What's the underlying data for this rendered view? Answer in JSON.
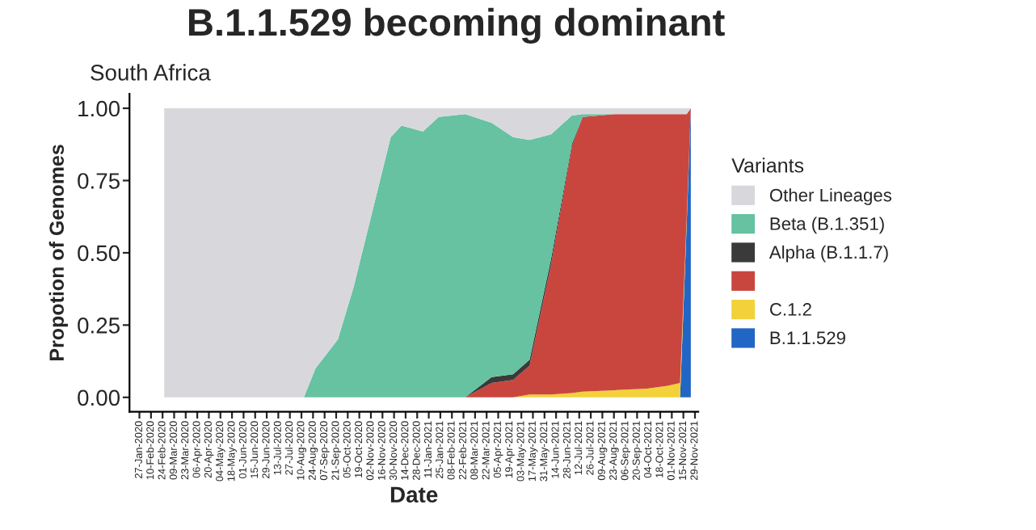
{
  "chart_data": {
    "type": "area",
    "stacked": true,
    "title": "B.1.1.529 becoming dominant",
    "subtitle": "South Africa",
    "xlabel": "Date",
    "ylabel": "Propotion of Genomes",
    "legend_title": "Variants",
    "legend": "right",
    "grid": false,
    "x": [
      "2020-02-26",
      "2020-08-13",
      "2020-08-27",
      "2020-09-23",
      "2020-10-12",
      "2020-10-31",
      "2020-11-26",
      "2020-12-09",
      "2021-01-04",
      "2021-01-23",
      "2021-02-24",
      "2021-03-28",
      "2021-04-23",
      "2021-05-13",
      "2021-06-08",
      "2021-07-03",
      "2021-07-16",
      "2021-08-24",
      "2021-10-02",
      "2021-10-27",
      "2021-11-11",
      "2021-11-19",
      "2021-11-24"
    ],
    "xlim": [
      "2020-01-15",
      "2021-12-03"
    ],
    "xticks": [
      {
        "value": "2020-01-27",
        "label": "27-Jan-2020"
      },
      {
        "value": "2020-02-10",
        "label": "10-Feb-2020"
      },
      {
        "value": "2020-02-24",
        "label": "24-Feb-2020"
      },
      {
        "value": "2020-03-09",
        "label": "09-Mar-2020"
      },
      {
        "value": "2020-03-23",
        "label": "23-Mar-2020"
      },
      {
        "value": "2020-04-06",
        "label": "06-Apr-2020"
      },
      {
        "value": "2020-04-20",
        "label": "20-Apr-2020"
      },
      {
        "value": "2020-05-04",
        "label": "04-May-2020"
      },
      {
        "value": "2020-05-18",
        "label": "18-May-2020"
      },
      {
        "value": "2020-06-01",
        "label": "01-Jun-2020"
      },
      {
        "value": "2020-06-15",
        "label": "15-Jun-2020"
      },
      {
        "value": "2020-06-29",
        "label": "29-Jun-2020"
      },
      {
        "value": "2020-07-13",
        "label": "13-Jul-2020"
      },
      {
        "value": "2020-07-27",
        "label": "27-Jul-2020"
      },
      {
        "value": "2020-08-10",
        "label": "10-Aug-2020"
      },
      {
        "value": "2020-08-24",
        "label": "24-Aug-2020"
      },
      {
        "value": "2020-09-07",
        "label": "07-Sep-2020"
      },
      {
        "value": "2020-09-21",
        "label": "21-Sep-2020"
      },
      {
        "value": "2020-10-05",
        "label": "05-Oct-2020"
      },
      {
        "value": "2020-10-19",
        "label": "19-Oct-2020"
      },
      {
        "value": "2020-11-02",
        "label": "02-Nov-2020"
      },
      {
        "value": "2020-11-16",
        "label": "16-Nov-2020"
      },
      {
        "value": "2020-11-30",
        "label": "30-Nov-2020"
      },
      {
        "value": "2020-12-14",
        "label": "14-Dec-2020"
      },
      {
        "value": "2020-12-28",
        "label": "28-Dec-2020"
      },
      {
        "value": "2021-01-11",
        "label": "11-Jan-2021"
      },
      {
        "value": "2021-01-25",
        "label": "25-Jan-2021"
      },
      {
        "value": "2021-02-08",
        "label": "08-Feb-2021"
      },
      {
        "value": "2021-02-22",
        "label": "22-Feb-2021"
      },
      {
        "value": "2021-03-08",
        "label": "08-Mar-2021"
      },
      {
        "value": "2021-03-22",
        "label": "22-Mar-2021"
      },
      {
        "value": "2021-04-05",
        "label": "05-Apr-2021"
      },
      {
        "value": "2021-04-19",
        "label": "19-Apr-2021"
      },
      {
        "value": "2021-05-03",
        "label": "03-May-2021"
      },
      {
        "value": "2021-05-17",
        "label": "17-May-2021"
      },
      {
        "value": "2021-05-31",
        "label": "31-May-2021"
      },
      {
        "value": "2021-06-14",
        "label": "14-Jun-2021"
      },
      {
        "value": "2021-06-28",
        "label": "28-Jun-2021"
      },
      {
        "value": "2021-07-12",
        "label": "12-Jul-2021"
      },
      {
        "value": "2021-07-26",
        "label": "26-Jul-2021"
      },
      {
        "value": "2021-08-09",
        "label": "09-Aug-2021"
      },
      {
        "value": "2021-08-23",
        "label": "23-Aug-2021"
      },
      {
        "value": "2021-09-06",
        "label": "06-Sep-2021"
      },
      {
        "value": "2021-09-20",
        "label": "20-Sep-2021"
      },
      {
        "value": "2021-10-04",
        "label": "04-Oct-2021"
      },
      {
        "value": "2021-10-18",
        "label": "18-Oct-2021"
      },
      {
        "value": "2021-11-01",
        "label": "01-Nov-2021"
      },
      {
        "value": "2021-11-15",
        "label": "15-Nov-2021"
      },
      {
        "value": "2021-11-29",
        "label": "29-Nov-2021"
      }
    ],
    "ylim": [
      -0.05,
      1.05
    ],
    "yticks": [
      {
        "value": 0,
        "label": "0.00"
      },
      {
        "value": 0.25,
        "label": "0.25"
      },
      {
        "value": 0.5,
        "label": "0.50"
      },
      {
        "value": 0.75,
        "label": "0.75"
      },
      {
        "value": 1,
        "label": "1.00"
      }
    ],
    "series": [
      {
        "name": "B.1.1.529",
        "color": "#2166c4",
        "values": [
          null,
          null,
          null,
          null,
          null,
          null,
          null,
          null,
          null,
          null,
          null,
          null,
          null,
          null,
          null,
          null,
          null,
          null,
          null,
          null,
          0,
          0.6,
          1.0
        ]
      },
      {
        "name": "C.1.2",
        "color": "#f2d13a",
        "values": [
          null,
          null,
          null,
          null,
          null,
          null,
          null,
          null,
          null,
          null,
          null,
          null,
          0,
          0.01,
          0.01,
          0.015,
          0.02,
          0.025,
          0.03,
          0.04,
          0.05,
          0.02,
          0
        ]
      },
      {
        "color": "#c9463f",
        "values": [
          null,
          null,
          null,
          null,
          null,
          null,
          null,
          null,
          null,
          null,
          0,
          0.05,
          0.06,
          0.1,
          0.45,
          0.85,
          0.95,
          0.955,
          0.95,
          0.94,
          0.93,
          0.36,
          0
        ]
      },
      {
        "name": "Alpha (B.1.1.7)",
        "color": "#3a3a3a",
        "values": [
          null,
          null,
          null,
          null,
          null,
          null,
          null,
          null,
          null,
          null,
          0,
          0.02,
          0.02,
          0.02,
          0.02,
          0.01,
          0,
          null,
          null,
          null,
          null,
          null,
          null
        ]
      },
      {
        "name": "Beta (B.1.351)",
        "color": "#66c2a0",
        "values": [
          null,
          0,
          0.1,
          0.2,
          0.38,
          0.6,
          0.9,
          0.94,
          0.92,
          0.97,
          0.98,
          0.88,
          0.82,
          0.76,
          0.43,
          0.1,
          0.01,
          0,
          null,
          null,
          null,
          null,
          null
        ]
      },
      {
        "name": "Other Lineages",
        "color": "#d8d8dc",
        "values": [
          1,
          1,
          0.9,
          0.8,
          0.62,
          0.4,
          0.1,
          0.06,
          0.08,
          0.03,
          0.02,
          0.05,
          0.1,
          0.11,
          0.09,
          0.025,
          0.02,
          0.02,
          0.02,
          0.02,
          0.02,
          0.02,
          0
        ]
      }
    ]
  }
}
